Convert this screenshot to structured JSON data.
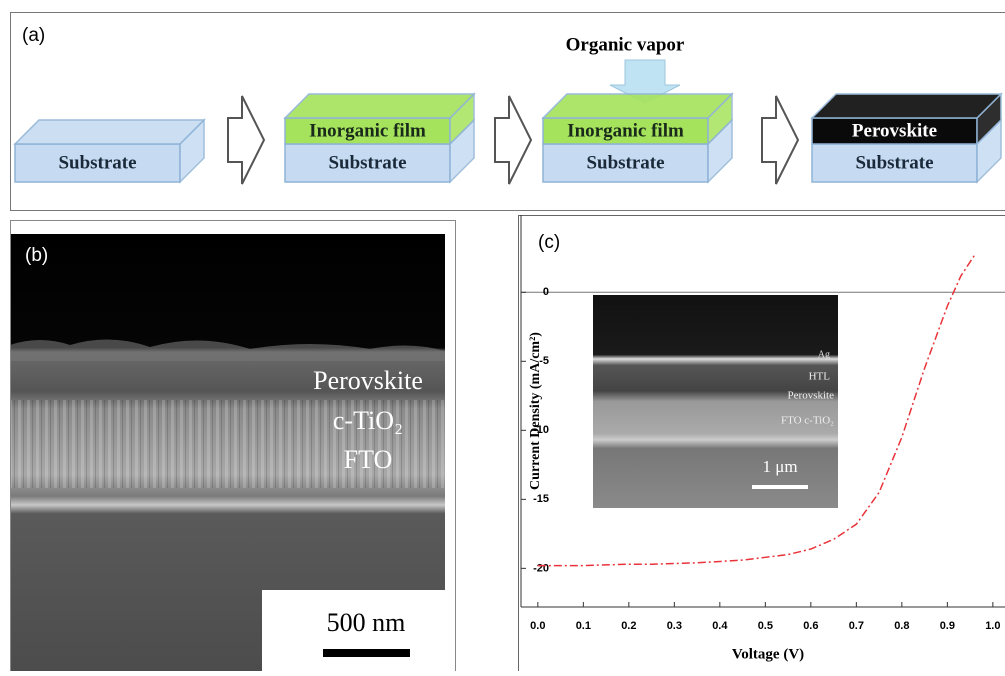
{
  "panel_a": {
    "label": "(a)",
    "vapor": "Organic vapor",
    "steps": [
      {
        "layers": [
          {
            "text": "Substrate",
            "color": "#c6dbf1",
            "text_color": "#1a2a3a"
          }
        ]
      },
      {
        "layers": [
          {
            "text": "Substrate",
            "color": "#c6dbf1",
            "text_color": "#1a2a3a"
          },
          {
            "text": "Inorganic film",
            "color": "#a5e35c",
            "text_color": "#1a2a1a"
          }
        ]
      },
      {
        "layers": [
          {
            "text": "Substrate",
            "color": "#c6dbf1",
            "text_color": "#1a2a3a"
          },
          {
            "text": "Inorganic film",
            "color": "#a5e35c",
            "text_color": "#1a2a1a"
          }
        ]
      },
      {
        "layers": [
          {
            "text": "Substrate",
            "color": "#c6dbf1",
            "text_color": "#1a2a3a"
          },
          {
            "text": "Perovskite",
            "color": "#0a0a0a",
            "text_color": "#ffffff"
          }
        ]
      }
    ]
  },
  "panel_b": {
    "label": "(b)",
    "layers": [
      "Perovskite",
      "c-TiO₂",
      "FTO"
    ],
    "scale": "500 nm"
  },
  "panel_c": {
    "label": "(c)",
    "inset": {
      "layers": [
        "Ag",
        "HTL",
        "Perovskite",
        "FTO c-TiO₂"
      ],
      "scale": "1 μm"
    }
  },
  "chart_data": {
    "type": "line",
    "x_label": "Voltage (V)",
    "y_label": "Current Density (mA/cm²)",
    "x": [
      0,
      0.05,
      0.1,
      0.15,
      0.2,
      0.25,
      0.3,
      0.35,
      0.4,
      0.45,
      0.5,
      0.55,
      0.6,
      0.65,
      0.7,
      0.75,
      0.8,
      0.85,
      0.9,
      0.93,
      0.96
    ],
    "values": [
      -19.8,
      -19.8,
      -19.8,
      -19.75,
      -19.7,
      -19.7,
      -19.65,
      -19.6,
      -19.5,
      -19.4,
      -19.2,
      -19.0,
      -18.6,
      -17.9,
      -16.8,
      -14.5,
      -10.5,
      -5.5,
      -1.0,
      1.2,
      2.7
    ],
    "color": "#e8333a",
    "xlim": [
      -0.037,
      1.03
    ],
    "xticks": [
      {
        "value": 0,
        "label": "0.0"
      },
      0.1,
      0.2,
      0.3,
      0.4,
      0.5,
      0.6,
      0.7,
      0.8,
      0.9,
      {
        "value": 1,
        "label": "1.0"
      }
    ],
    "ylim": [
      -22.8,
      5.6
    ],
    "yticks": [
      -20,
      -15,
      -10,
      -5,
      0
    ]
  }
}
